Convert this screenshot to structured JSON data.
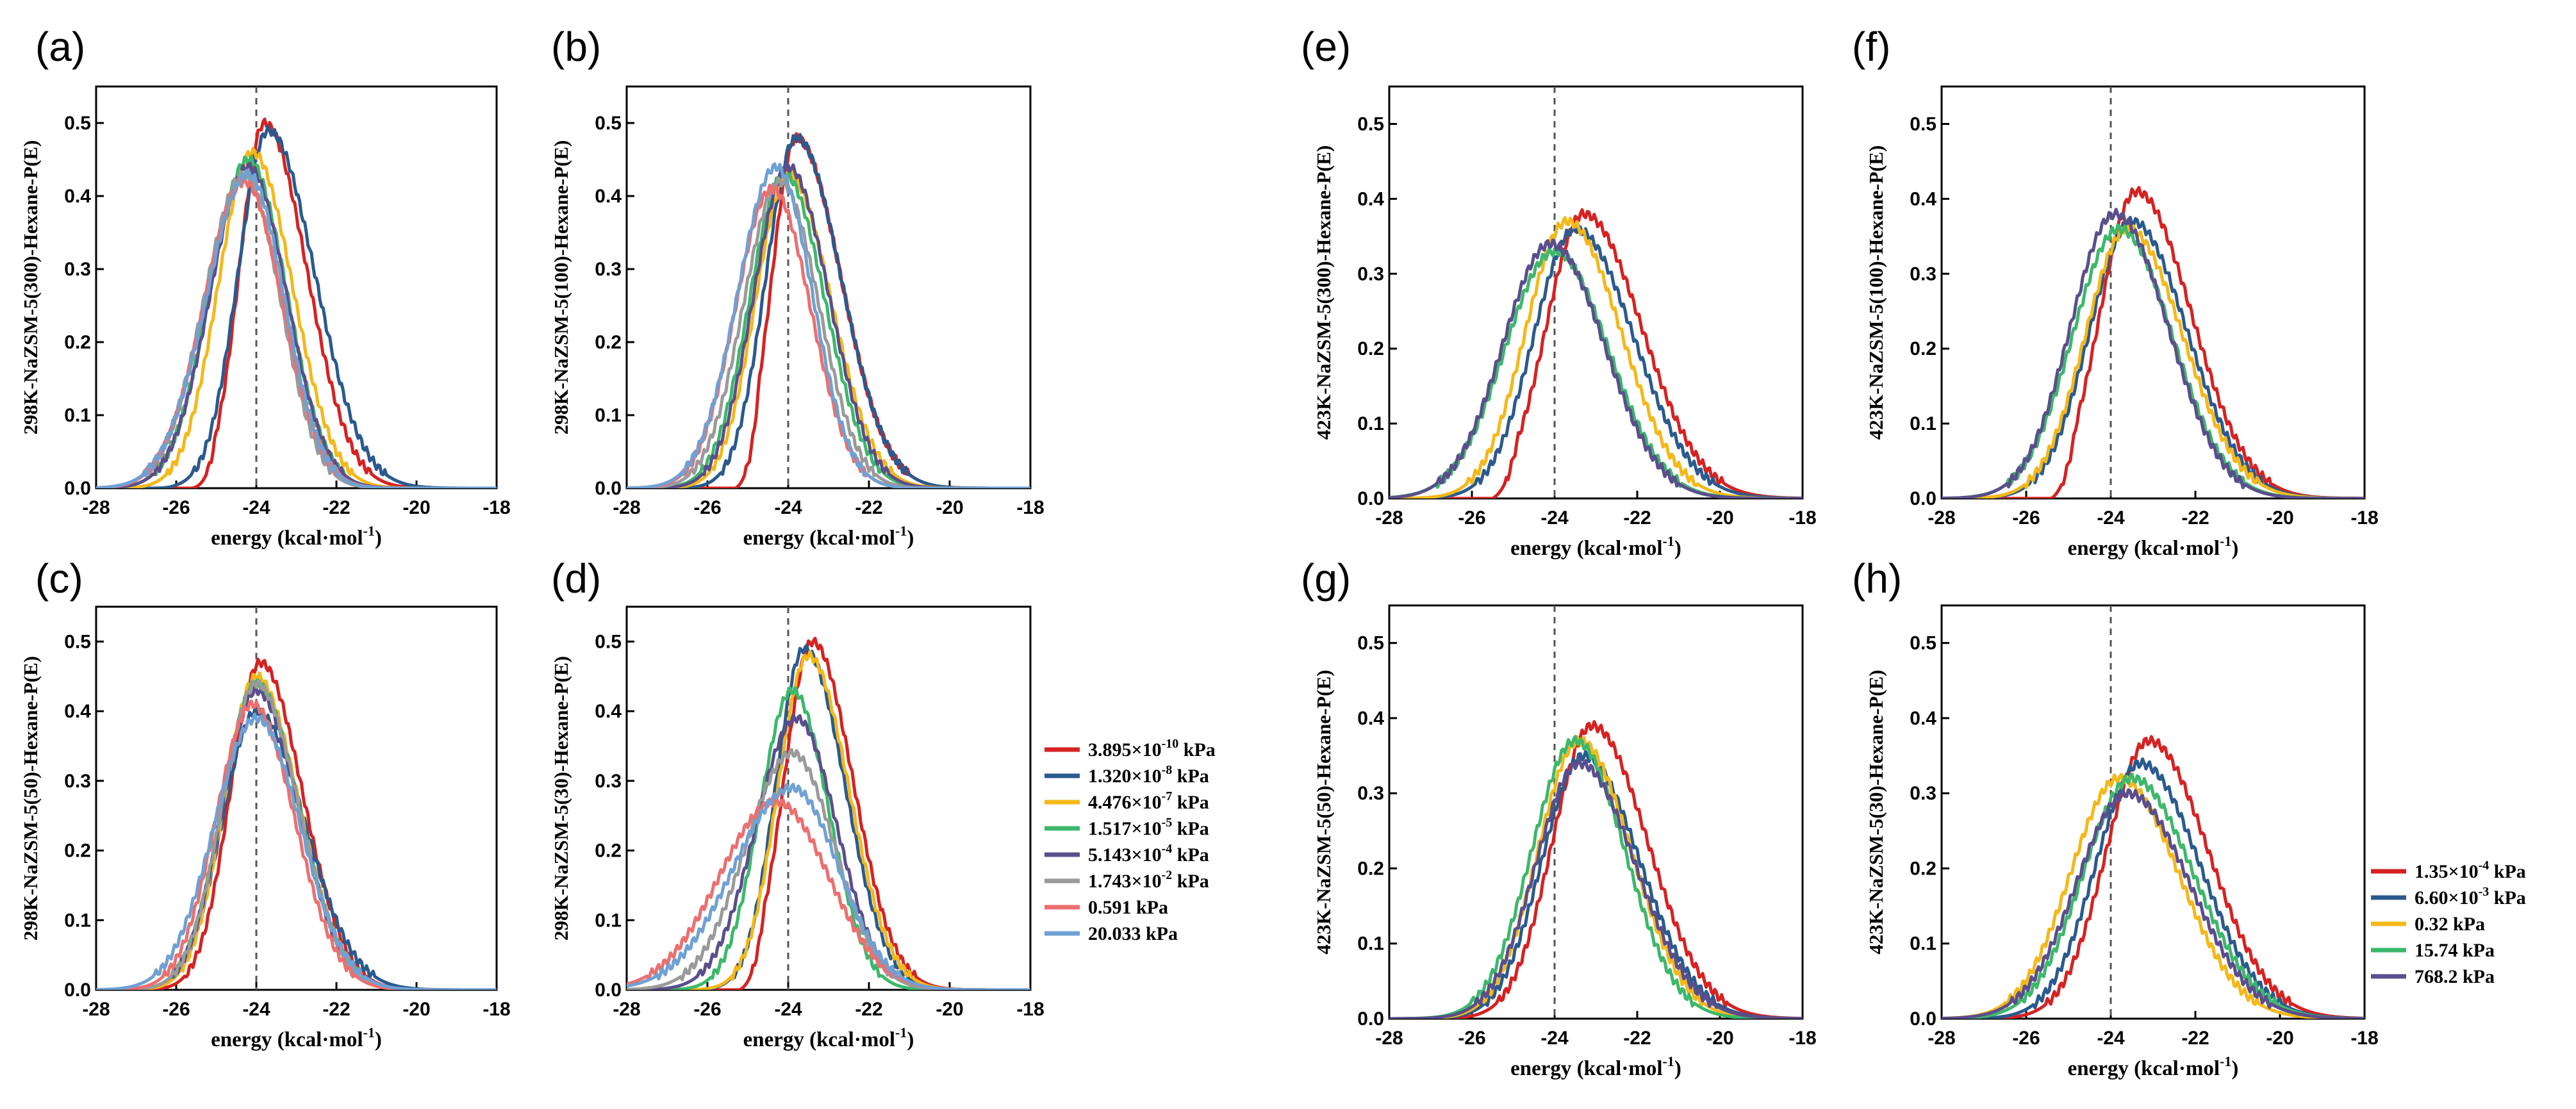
{
  "colors": {
    "red": "#d62222",
    "navy": "#2a5a8e",
    "yellow": "#f4b819",
    "green": "#3cb86b",
    "purple": "#5b4e8c",
    "gray": "#9a9a9a",
    "pink": "#ec6f6f",
    "lightblue": "#6fa1d4"
  },
  "legend_298": {
    "entries": [
      {
        "mant": "3.895×10",
        "exp": "-10",
        "unit": " kPa",
        "color": "#d62222"
      },
      {
        "mant": "1.320×10",
        "exp": "-8",
        "unit": " kPa",
        "color": "#2a5a8e"
      },
      {
        "mant": "4.476×10",
        "exp": "-7",
        "unit": " kPa",
        "color": "#f4b819"
      },
      {
        "mant": "1.517×10",
        "exp": "-5",
        "unit": " kPa",
        "color": "#3cb86b"
      },
      {
        "mant": "5.143×10",
        "exp": "-4",
        "unit": " kPa",
        "color": "#5b4e8c"
      },
      {
        "mant": "1.743×10",
        "exp": "-2",
        "unit": " kPa",
        "color": "#9a9a9a"
      },
      {
        "mant": "0.591 kPa",
        "exp": "",
        "unit": "",
        "color": "#ec6f6f"
      },
      {
        "mant": "20.033 kPa",
        "exp": "",
        "unit": "",
        "color": "#6fa1d4"
      }
    ]
  },
  "legend_423": {
    "entries": [
      {
        "mant": "1.35×10",
        "exp": "-4",
        "unit": " kPa",
        "color": "#d62222"
      },
      {
        "mant": "6.60×10",
        "exp": "-3",
        "unit": " kPa",
        "color": "#2a5a8e"
      },
      {
        "mant": "0.32 kPa",
        "exp": "",
        "unit": "",
        "color": "#f4b819"
      },
      {
        "mant": "15.74 kPa",
        "exp": "",
        "unit": "",
        "color": "#3cb86b"
      },
      {
        "mant": "768.2 kPa",
        "exp": "",
        "unit": "",
        "color": "#5b4e8c"
      }
    ]
  },
  "chart_data": [
    {
      "label": "(a)",
      "type": "line",
      "title": "",
      "xlabel_main": "energy (kcal·mol",
      "xlabel_sup": "-1",
      "xlabel_end": ")",
      "ylabel": "298K-NaZSM-5(300)-Hexane-P(E)",
      "xlim": [
        -28,
        -18
      ],
      "ylim": [
        0,
        0.55
      ],
      "xticks": [
        -28,
        -26,
        -24,
        -22,
        -20,
        -18
      ],
      "yticks": [
        0.0,
        0.1,
        0.2,
        0.3,
        0.4,
        0.5
      ],
      "vline": -24,
      "series": [
        {
          "name": "3.895×10^-10 kPa",
          "color": "#d62222",
          "peak_x": -23.8,
          "peak_y": 0.5,
          "sl": 0.62,
          "sr": 1.05,
          "start": -25.6
        },
        {
          "name": "1.320×10^-8 kPa",
          "color": "#2a5a8e",
          "peak_x": -23.7,
          "peak_y": 0.49,
          "sl": 0.75,
          "sr": 1.15,
          "start": -26.6
        },
        {
          "name": "4.476×10^-7 kPa",
          "color": "#f4b819",
          "peak_x": -24.1,
          "peak_y": 0.46,
          "sl": 0.85,
          "sr": 1.0
        },
        {
          "name": "1.517×10^-5 kPa",
          "color": "#3cb86b",
          "peak_x": -24.2,
          "peak_y": 0.45,
          "sl": 0.95,
          "sr": 0.95
        },
        {
          "name": "5.143×10^-4 kPa",
          "color": "#5b4e8c",
          "peak_x": -24.2,
          "peak_y": 0.44,
          "sl": 0.95,
          "sr": 0.95
        },
        {
          "name": "1.743×10^-2 kPa",
          "color": "#9a9a9a",
          "peak_x": -24.3,
          "peak_y": 0.43,
          "sl": 1.0,
          "sr": 0.9
        },
        {
          "name": "0.591 kPa",
          "color": "#ec6f6f",
          "peak_x": -24.3,
          "peak_y": 0.42,
          "sl": 1.0,
          "sr": 0.95
        },
        {
          "name": "20.033 kPa",
          "color": "#6fa1d4",
          "peak_x": -24.2,
          "peak_y": 0.43,
          "sl": 1.05,
          "sr": 0.9
        }
      ]
    },
    {
      "label": "(b)",
      "type": "line",
      "title": "",
      "xlabel_main": "energy (kcal·mol",
      "xlabel_sup": "-1",
      "xlabel_end": ")",
      "ylabel": "298K-NaZSM-5(100)-Hexane-P(E)",
      "xlim": [
        -28,
        -18
      ],
      "ylim": [
        0,
        0.55
      ],
      "xticks": [
        -28,
        -26,
        -24,
        -22,
        -20,
        -18
      ],
      "yticks": [
        0.0,
        0.1,
        0.2,
        0.3,
        0.4,
        0.5
      ],
      "vline": -24,
      "series": [
        {
          "name": "3.895×10^-10 kPa",
          "color": "#d62222",
          "peak_x": -23.8,
          "peak_y": 0.48,
          "sl": 0.6,
          "sr": 1.1,
          "start": -25.3
        },
        {
          "name": "1.320×10^-8 kPa",
          "color": "#2a5a8e",
          "peak_x": -23.8,
          "peak_y": 0.48,
          "sl": 0.75,
          "sr": 1.1
        },
        {
          "name": "4.476×10^-7 kPa",
          "color": "#f4b819",
          "peak_x": -24.0,
          "peak_y": 0.43,
          "sl": 0.8,
          "sr": 1.05
        },
        {
          "name": "1.517×10^-5 kPa",
          "color": "#3cb86b",
          "peak_x": -24.1,
          "peak_y": 0.43,
          "sl": 0.85,
          "sr": 1.0
        },
        {
          "name": "5.143×10^-4 kPa",
          "color": "#5b4e8c",
          "peak_x": -24.0,
          "peak_y": 0.44,
          "sl": 0.85,
          "sr": 1.0
        },
        {
          "name": "1.743×10^-2 kPa",
          "color": "#9a9a9a",
          "peak_x": -24.2,
          "peak_y": 0.42,
          "sl": 0.9,
          "sr": 0.95
        },
        {
          "name": "0.591 kPa",
          "color": "#ec6f6f",
          "peak_x": -24.4,
          "peak_y": 0.41,
          "sl": 0.9,
          "sr": 0.95
        },
        {
          "name": "20.033 kPa",
          "color": "#6fa1d4",
          "peak_x": -24.3,
          "peak_y": 0.44,
          "sl": 0.95,
          "sr": 0.9
        }
      ]
    },
    {
      "label": "(c)",
      "type": "line",
      "title": "",
      "xlabel_main": "energy (kcal·mol",
      "xlabel_sup": "-1",
      "xlabel_end": ")",
      "ylabel": "298K-NaZSM-5(50)-Hexane-P(E)",
      "xlim": [
        -28,
        -18
      ],
      "ylim": [
        0,
        0.55
      ],
      "xticks": [
        -28,
        -26,
        -24,
        -22,
        -20,
        -18
      ],
      "yticks": [
        0.0,
        0.1,
        0.2,
        0.3,
        0.4,
        0.5
      ],
      "vline": -24,
      "series": [
        {
          "name": "3.895×10^-10 kPa",
          "color": "#d62222",
          "peak_x": -23.9,
          "peak_y": 0.47,
          "sl": 0.75,
          "sr": 1.05
        },
        {
          "name": "1.320×10^-8 kPa",
          "color": "#2a5a8e",
          "peak_x": -24.0,
          "peak_y": 0.4,
          "sl": 0.85,
          "sr": 1.2
        },
        {
          "name": "4.476×10^-7 kPa",
          "color": "#f4b819",
          "peak_x": -24.0,
          "peak_y": 0.45,
          "sl": 0.8,
          "sr": 1.05
        },
        {
          "name": "1.517×10^-5 kPa",
          "color": "#3cb86b",
          "peak_x": -24.0,
          "peak_y": 0.44,
          "sl": 0.85,
          "sr": 1.05
        },
        {
          "name": "5.143×10^-4 kPa",
          "color": "#5b4e8c",
          "peak_x": -24.0,
          "peak_y": 0.43,
          "sl": 0.85,
          "sr": 1.05
        },
        {
          "name": "1.743×10^-2 kPa",
          "color": "#9a9a9a",
          "peak_x": -24.0,
          "peak_y": 0.44,
          "sl": 0.85,
          "sr": 1.05
        },
        {
          "name": "0.591 kPa",
          "color": "#ec6f6f",
          "peak_x": -24.1,
          "peak_y": 0.41,
          "sl": 0.9,
          "sr": 1.05
        },
        {
          "name": "20.033 kPa",
          "color": "#6fa1d4",
          "peak_x": -24.0,
          "peak_y": 0.39,
          "sl": 1.05,
          "sr": 1.1
        }
      ]
    },
    {
      "label": "(d)",
      "type": "line",
      "title": "",
      "xlabel_main": "energy (kcal·mol",
      "xlabel_sup": "-1",
      "xlabel_end": ")",
      "ylabel": "298K-NaZSM-5(30)-Hexane-P(E)",
      "xlim": [
        -28,
        -18
      ],
      "ylim": [
        0,
        0.55
      ],
      "xticks": [
        -28,
        -26,
        -24,
        -22,
        -20,
        -18
      ],
      "yticks": [
        0.0,
        0.1,
        0.2,
        0.3,
        0.4,
        0.5
      ],
      "vline": -24,
      "series": [
        {
          "name": "3.895×10^-10 kPa",
          "color": "#d62222",
          "peak_x": -23.4,
          "peak_y": 0.5,
          "sl": 0.7,
          "sr": 1.0,
          "start": -25.2
        },
        {
          "name": "1.320×10^-8 kPa",
          "color": "#2a5a8e",
          "peak_x": -23.6,
          "peak_y": 0.49,
          "sl": 0.7,
          "sr": 1.0
        },
        {
          "name": "4.476×10^-7 kPa",
          "color": "#f4b819",
          "peak_x": -23.5,
          "peak_y": 0.48,
          "sl": 0.75,
          "sr": 1.0
        },
        {
          "name": "1.517×10^-5 kPa",
          "color": "#3cb86b",
          "peak_x": -23.9,
          "peak_y": 0.43,
          "sl": 0.8,
          "sr": 0.9
        },
        {
          "name": "5.143×10^-4 kPa",
          "color": "#5b4e8c",
          "peak_x": -23.8,
          "peak_y": 0.39,
          "sl": 1.0,
          "sr": 1.0
        },
        {
          "name": "1.743×10^-2 kPa",
          "color": "#9a9a9a",
          "peak_x": -23.9,
          "peak_y": 0.34,
          "sl": 1.15,
          "sr": 1.05
        },
        {
          "name": "0.591 kPa",
          "color": "#ec6f6f",
          "peak_x": -24.3,
          "peak_y": 0.27,
          "sl": 1.4,
          "sr": 1.3
        },
        {
          "name": "20.033 kPa",
          "color": "#6fa1d4",
          "peak_x": -23.9,
          "peak_y": 0.29,
          "sl": 1.45,
          "sr": 1.15
        }
      ]
    },
    {
      "label": "(e)",
      "type": "line",
      "title": "",
      "xlabel_main": "energy (kcal·mol",
      "xlabel_sup": "-1",
      "xlabel_end": ")",
      "ylabel": "423K-NaZSM-5(300)-Hexane-P(E)",
      "xlim": [
        -28,
        -18
      ],
      "ylim": [
        0,
        0.55
      ],
      "xticks": [
        -28,
        -26,
        -24,
        -22,
        -20,
        -18
      ],
      "yticks": [
        0.0,
        0.1,
        0.2,
        0.3,
        0.4,
        0.5
      ],
      "vline": -24,
      "series": [
        {
          "name": "1.35×10^-4 kPa",
          "color": "#d62222",
          "peak_x": -23.3,
          "peak_y": 0.38,
          "sl": 0.9,
          "sr": 1.4,
          "start": -25.5
        },
        {
          "name": "6.60×10^-3 kPa",
          "color": "#2a5a8e",
          "peak_x": -23.5,
          "peak_y": 0.36,
          "sl": 1.0,
          "sr": 1.4
        },
        {
          "name": "0.32 kPa",
          "color": "#f4b819",
          "peak_x": -23.7,
          "peak_y": 0.37,
          "sl": 1.0,
          "sr": 1.3
        },
        {
          "name": "15.74 kPa",
          "color": "#3cb86b",
          "peak_x": -24.0,
          "peak_y": 0.33,
          "sl": 1.2,
          "sr": 1.3
        },
        {
          "name": "768.2 kPa",
          "color": "#5b4e8c",
          "peak_x": -24.1,
          "peak_y": 0.34,
          "sl": 1.15,
          "sr": 1.3
        }
      ]
    },
    {
      "label": "(f)",
      "type": "line",
      "title": "",
      "xlabel_main": "energy (kcal·mol",
      "xlabel_sup": "-1",
      "xlabel_end": ")",
      "ylabel": "423K-NaZSM-5(100)-Hexane-P(E)",
      "xlim": [
        -28,
        -18
      ],
      "ylim": [
        0,
        0.55
      ],
      "xticks": [
        -28,
        -26,
        -24,
        -22,
        -20,
        -18
      ],
      "yticks": [
        0.0,
        0.1,
        0.2,
        0.3,
        0.4,
        0.5
      ],
      "vline": -24,
      "series": [
        {
          "name": "1.35×10^-4 kPa",
          "color": "#d62222",
          "peak_x": -23.4,
          "peak_y": 0.41,
          "sl": 0.85,
          "sr": 1.3,
          "start": -25.4
        },
        {
          "name": "6.60×10^-3 kPa",
          "color": "#2a5a8e",
          "peak_x": -23.5,
          "peak_y": 0.37,
          "sl": 1.0,
          "sr": 1.3
        },
        {
          "name": "0.32 kPa",
          "color": "#f4b819",
          "peak_x": -23.6,
          "peak_y": 0.36,
          "sl": 1.0,
          "sr": 1.3
        },
        {
          "name": "15.74 kPa",
          "color": "#3cb86b",
          "peak_x": -23.8,
          "peak_y": 0.36,
          "sl": 1.1,
          "sr": 1.25
        },
        {
          "name": "768.2 kPa",
          "color": "#5b4e8c",
          "peak_x": -23.9,
          "peak_y": 0.38,
          "sl": 1.05,
          "sr": 1.25
        }
      ]
    },
    {
      "label": "(g)",
      "type": "line",
      "title": "",
      "xlabel_main": "energy (kcal·mol",
      "xlabel_sup": "-1",
      "xlabel_end": ")",
      "ylabel": "423K-NaZSM-5(50)-Hexane-P(E)",
      "xlim": [
        -28,
        -18
      ],
      "ylim": [
        0,
        0.55
      ],
      "xticks": [
        -28,
        -26,
        -24,
        -22,
        -20,
        -18
      ],
      "yticks": [
        0.0,
        0.1,
        0.2,
        0.3,
        0.4,
        0.5
      ],
      "vline": -24,
      "series": [
        {
          "name": "1.35×10^-4 kPa",
          "color": "#d62222",
          "peak_x": -23.1,
          "peak_y": 0.39,
          "sl": 0.95,
          "sr": 1.35
        },
        {
          "name": "6.60×10^-3 kPa",
          "color": "#2a5a8e",
          "peak_x": -23.3,
          "peak_y": 0.35,
          "sl": 1.0,
          "sr": 1.35
        },
        {
          "name": "0.32 kPa",
          "color": "#f4b819",
          "peak_x": -23.4,
          "peak_y": 0.37,
          "sl": 1.0,
          "sr": 1.25
        },
        {
          "name": "15.74 kPa",
          "color": "#3cb86b",
          "peak_x": -23.5,
          "peak_y": 0.37,
          "sl": 1.05,
          "sr": 1.2
        },
        {
          "name": "768.2 kPa",
          "color": "#5b4e8c",
          "peak_x": -23.4,
          "peak_y": 0.34,
          "sl": 1.05,
          "sr": 1.35
        }
      ]
    },
    {
      "label": "(h)",
      "type": "line",
      "title": "",
      "xlabel_main": "energy (kcal·mol",
      "xlabel_sup": "-1",
      "xlabel_end": ")",
      "ylabel": "423K-NaZSM-5(30)-Hexane-P(E)",
      "xlim": [
        -28,
        -18
      ],
      "ylim": [
        0,
        0.55
      ],
      "xticks": [
        -28,
        -26,
        -24,
        -22,
        -20,
        -18
      ],
      "yticks": [
        0.0,
        0.1,
        0.2,
        0.3,
        0.4,
        0.5
      ],
      "vline": -24,
      "series": [
        {
          "name": "1.35×10^-4 kPa",
          "color": "#d62222",
          "peak_x": -23.1,
          "peak_y": 0.37,
          "sl": 1.0,
          "sr": 1.4
        },
        {
          "name": "6.60×10^-3 kPa",
          "color": "#2a5a8e",
          "peak_x": -23.3,
          "peak_y": 0.34,
          "sl": 1.05,
          "sr": 1.4
        },
        {
          "name": "0.32 kPa",
          "color": "#f4b819",
          "peak_x": -23.8,
          "peak_y": 0.32,
          "sl": 1.15,
          "sr": 1.4
        },
        {
          "name": "15.74 kPa",
          "color": "#3cb86b",
          "peak_x": -23.5,
          "peak_y": 0.32,
          "sl": 1.15,
          "sr": 1.45
        },
        {
          "name": "768.2 kPa",
          "color": "#5b4e8c",
          "peak_x": -23.6,
          "peak_y": 0.3,
          "sl": 1.2,
          "sr": 1.45
        }
      ]
    }
  ]
}
